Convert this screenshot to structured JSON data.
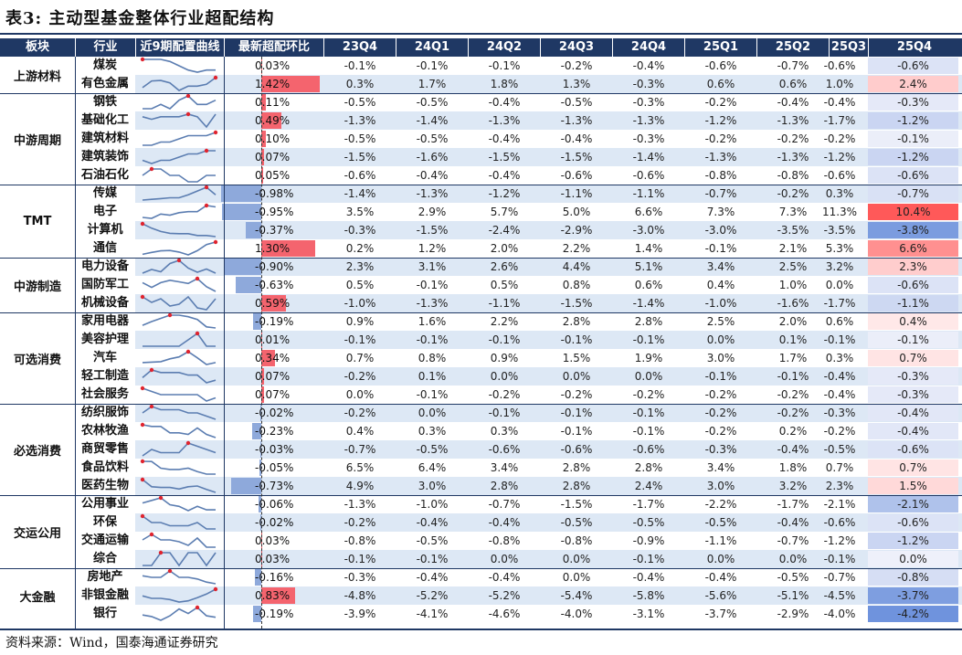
{
  "title": "表3:  主动型基金整体行业超配结构",
  "source": "资料来源：Wind，国泰海通证券研究",
  "headers": [
    "板块",
    "行业",
    "近9期配置曲线",
    "最新超配环比",
    "23Q4",
    "24Q1",
    "24Q2",
    "24Q3",
    "24Q4",
    "25Q1",
    "25Q2",
    "25Q3",
    "25Q4"
  ],
  "colors": {
    "header_bg": "#1f3864",
    "row_shade": "#dde8f5",
    "pos_bar": "#f4646e",
    "neg_bar": "#8ea9db",
    "spark_line": "#5b7db1",
    "spark_dot": "#e0242f"
  },
  "sectors": [
    {
      "name": "上游材料",
      "rows": 2
    },
    {
      "name": "中游周期",
      "rows": 5
    },
    {
      "name": "TMT",
      "rows": 4
    },
    {
      "name": "中游制造",
      "rows": 3
    },
    {
      "name": "可选消费",
      "rows": 5
    },
    {
      "name": "必选消费",
      "rows": 5
    },
    {
      "name": "交运公用",
      "rows": 4
    },
    {
      "name": "大金融",
      "rows": 3
    }
  ],
  "rows": [
    {
      "industry": "煤炭",
      "change": "0.03%",
      "change_value": 0.03,
      "values": [
        "-0.1%",
        "-0.1%",
        "-0.1%",
        "-0.2%",
        "-0.4%",
        "-0.6%",
        "-0.7%",
        "-0.6%",
        "-0.6%"
      ]
    },
    {
      "industry": "有色金属",
      "change": "1.42%",
      "change_value": 1.42,
      "values": [
        "0.3%",
        "1.7%",
        "1.8%",
        "1.3%",
        "-0.3%",
        "0.6%",
        "0.6%",
        "1.0%",
        "2.4%"
      ]
    },
    {
      "industry": "钢铁",
      "change": "0.11%",
      "change_value": 0.11,
      "values": [
        "-0.5%",
        "-0.5%",
        "-0.4%",
        "-0.5%",
        "-0.3%",
        "-0.2%",
        "-0.4%",
        "-0.4%",
        "-0.3%"
      ]
    },
    {
      "industry": "基础化工",
      "change": "0.49%",
      "change_value": 0.49,
      "values": [
        "-1.3%",
        "-1.4%",
        "-1.3%",
        "-1.3%",
        "-1.3%",
        "-1.2%",
        "-1.3%",
        "-1.7%",
        "-1.2%"
      ]
    },
    {
      "industry": "建筑材料",
      "change": "0.10%",
      "change_value": 0.1,
      "values": [
        "-0.5%",
        "-0.5%",
        "-0.4%",
        "-0.4%",
        "-0.3%",
        "-0.2%",
        "-0.2%",
        "-0.2%",
        "-0.1%"
      ]
    },
    {
      "industry": "建筑装饰",
      "change": "0.07%",
      "change_value": 0.07,
      "values": [
        "-1.5%",
        "-1.6%",
        "-1.5%",
        "-1.5%",
        "-1.4%",
        "-1.3%",
        "-1.3%",
        "-1.2%",
        "-1.2%"
      ]
    },
    {
      "industry": "石油石化",
      "change": "0.05%",
      "change_value": 0.05,
      "values": [
        "-0.6%",
        "-0.4%",
        "-0.4%",
        "-0.6%",
        "-0.6%",
        "-0.8%",
        "-0.8%",
        "-0.6%",
        "-0.6%"
      ]
    },
    {
      "industry": "传媒",
      "change": "-0.98%",
      "change_value": -0.98,
      "values": [
        "-1.4%",
        "-1.3%",
        "-1.2%",
        "-1.1%",
        "-1.1%",
        "-0.7%",
        "-0.2%",
        "0.3%",
        "-0.7%"
      ]
    },
    {
      "industry": "电子",
      "change": "-0.95%",
      "change_value": -0.95,
      "values": [
        "3.5%",
        "2.9%",
        "5.7%",
        "5.0%",
        "6.6%",
        "7.3%",
        "7.3%",
        "11.3%",
        "10.4%"
      ]
    },
    {
      "industry": "计算机",
      "change": "-0.37%",
      "change_value": -0.37,
      "values": [
        "-0.3%",
        "-1.5%",
        "-2.4%",
        "-2.9%",
        "-3.0%",
        "-3.0%",
        "-3.5%",
        "-3.5%",
        "-3.8%"
      ]
    },
    {
      "industry": "通信",
      "change": "1.30%",
      "change_value": 1.3,
      "values": [
        "0.2%",
        "1.2%",
        "2.0%",
        "2.2%",
        "1.4%",
        "-0.1%",
        "2.1%",
        "5.3%",
        "6.6%"
      ]
    },
    {
      "industry": "电力设备",
      "change": "-0.90%",
      "change_value": -0.9,
      "values": [
        "2.3%",
        "3.1%",
        "2.6%",
        "4.4%",
        "5.1%",
        "3.4%",
        "2.5%",
        "3.2%",
        "2.3%"
      ]
    },
    {
      "industry": "国防军工",
      "change": "-0.63%",
      "change_value": -0.63,
      "values": [
        "0.5%",
        "-0.1%",
        "0.5%",
        "0.8%",
        "0.6%",
        "0.4%",
        "1.0%",
        "0.0%",
        "-0.6%"
      ]
    },
    {
      "industry": "机械设备",
      "change": "0.59%",
      "change_value": 0.59,
      "values": [
        "-1.0%",
        "-1.3%",
        "-1.1%",
        "-1.5%",
        "-1.4%",
        "-1.0%",
        "-1.6%",
        "-1.7%",
        "-1.1%"
      ]
    },
    {
      "industry": "家用电器",
      "change": "-0.19%",
      "change_value": -0.19,
      "values": [
        "0.9%",
        "1.6%",
        "2.2%",
        "2.8%",
        "2.8%",
        "2.5%",
        "2.0%",
        "0.6%",
        "0.4%"
      ]
    },
    {
      "industry": "美容护理",
      "change": "0.01%",
      "change_value": 0.01,
      "values": [
        "-0.1%",
        "-0.1%",
        "-0.1%",
        "-0.1%",
        "-0.1%",
        "0.0%",
        "0.1%",
        "-0.1%",
        "-0.1%"
      ]
    },
    {
      "industry": "汽车",
      "change": "0.34%",
      "change_value": 0.34,
      "values": [
        "0.7%",
        "0.8%",
        "0.9%",
        "1.5%",
        "1.9%",
        "3.0%",
        "1.7%",
        "0.3%",
        "0.7%"
      ]
    },
    {
      "industry": "轻工制造",
      "change": "0.07%",
      "change_value": 0.07,
      "values": [
        "-0.2%",
        "0.1%",
        "0.0%",
        "0.0%",
        "0.0%",
        "-0.1%",
        "-0.1%",
        "-0.4%",
        "-0.3%"
      ]
    },
    {
      "industry": "社会服务",
      "change": "0.07%",
      "change_value": 0.07,
      "values": [
        "0.0%",
        "-0.1%",
        "-0.2%",
        "-0.2%",
        "-0.2%",
        "-0.2%",
        "-0.2%",
        "-0.4%",
        "-0.3%"
      ]
    },
    {
      "industry": "纺织服饰",
      "change": "-0.02%",
      "change_value": -0.02,
      "values": [
        "-0.2%",
        "0.0%",
        "-0.1%",
        "-0.1%",
        "-0.1%",
        "-0.2%",
        "-0.2%",
        "-0.3%",
        "-0.4%"
      ]
    },
    {
      "industry": "农林牧渔",
      "change": "-0.23%",
      "change_value": -0.23,
      "values": [
        "0.4%",
        "0.3%",
        "0.3%",
        "-0.1%",
        "-0.1%",
        "-0.2%",
        "0.2%",
        "-0.2%",
        "-0.4%"
      ]
    },
    {
      "industry": "商贸零售",
      "change": "-0.03%",
      "change_value": -0.03,
      "values": [
        "-0.7%",
        "-0.5%",
        "-0.6%",
        "-0.6%",
        "-0.6%",
        "-0.3%",
        "-0.4%",
        "-0.5%",
        "-0.6%"
      ]
    },
    {
      "industry": "食品饮料",
      "change": "-0.05%",
      "change_value": -0.05,
      "values": [
        "6.5%",
        "6.4%",
        "3.4%",
        "2.8%",
        "2.8%",
        "3.4%",
        "1.8%",
        "0.7%",
        "0.7%"
      ]
    },
    {
      "industry": "医药生物",
      "change": "-0.73%",
      "change_value": -0.73,
      "values": [
        "4.9%",
        "3.0%",
        "2.8%",
        "2.8%",
        "2.4%",
        "3.0%",
        "3.2%",
        "2.3%",
        "1.5%"
      ]
    },
    {
      "industry": "公用事业",
      "change": "-0.06%",
      "change_value": -0.06,
      "values": [
        "-1.3%",
        "-1.0%",
        "-0.7%",
        "-1.5%",
        "-1.7%",
        "-2.2%",
        "-1.7%",
        "-2.1%",
        "-2.1%"
      ]
    },
    {
      "industry": "环保",
      "change": "-0.02%",
      "change_value": -0.02,
      "values": [
        "-0.2%",
        "-0.4%",
        "-0.4%",
        "-0.5%",
        "-0.5%",
        "-0.5%",
        "-0.4%",
        "-0.6%",
        "-0.6%"
      ]
    },
    {
      "industry": "交通运输",
      "change": "0.03%",
      "change_value": 0.03,
      "values": [
        "-0.8%",
        "-0.5%",
        "-0.8%",
        "-0.8%",
        "-0.9%",
        "-1.1%",
        "-0.7%",
        "-1.2%",
        "-1.2%"
      ]
    },
    {
      "industry": "综合",
      "change": "0.03%",
      "change_value": 0.03,
      "values": [
        "-0.1%",
        "-0.1%",
        "0.0%",
        "0.0%",
        "-0.1%",
        "0.0%",
        "0.0%",
        "-0.1%",
        "0.0%"
      ]
    },
    {
      "industry": "房地产",
      "change": "-0.16%",
      "change_value": -0.16,
      "values": [
        "-0.3%",
        "-0.4%",
        "-0.4%",
        "0.0%",
        "-0.4%",
        "-0.4%",
        "-0.5%",
        "-0.7%",
        "-0.8%"
      ]
    },
    {
      "industry": "非银金融",
      "change": "0.83%",
      "change_value": 0.83,
      "values": [
        "-4.8%",
        "-5.2%",
        "-5.2%",
        "-5.4%",
        "-5.8%",
        "-5.6%",
        "-5.1%",
        "-4.5%",
        "-3.7%"
      ]
    },
    {
      "industry": "银行",
      "change": "-0.19%",
      "change_value": -0.19,
      "values": [
        "-3.9%",
        "-4.1%",
        "-4.6%",
        "-4.0%",
        "-3.1%",
        "-3.7%",
        "-2.9%",
        "-4.0%",
        "-4.2%"
      ]
    }
  ]
}
